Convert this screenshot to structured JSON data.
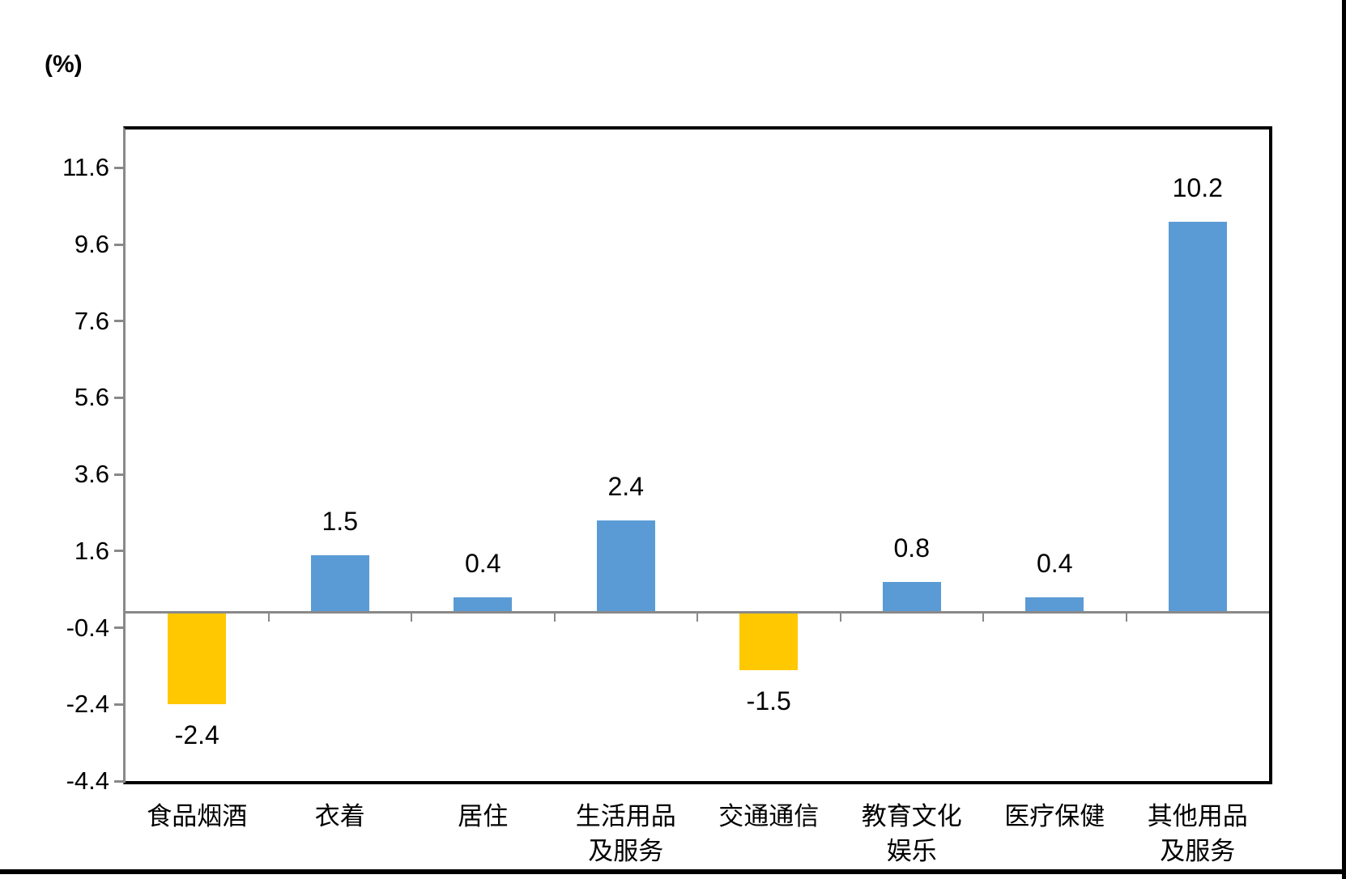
{
  "chart_data": {
    "type": "bar",
    "title": "",
    "ylabel": "(%)",
    "xlabel": "",
    "categories": [
      "食品烟酒",
      "衣着",
      "居住",
      "生活用品及服务",
      "交通通信",
      "教育文化娱乐",
      "医疗保健",
      "其他用品及服务"
    ],
    "category_lines": [
      [
        "食品烟酒"
      ],
      [
        "衣着"
      ],
      [
        "居住"
      ],
      [
        "生活用品",
        "及服务"
      ],
      [
        "交通通信"
      ],
      [
        "教育文化",
        "娱乐"
      ],
      [
        "医疗保健"
      ],
      [
        "其他用品",
        "及服务"
      ]
    ],
    "values": [
      -2.4,
      1.5,
      0.4,
      2.4,
      -1.5,
      0.8,
      0.4,
      10.2
    ],
    "value_labels": [
      "-2.4",
      "1.5",
      "0.4",
      "2.4",
      "-1.5",
      "0.8",
      "0.4",
      "10.2"
    ],
    "bar_colors": [
      "#FFC800",
      "#5B9BD5",
      "#5B9BD5",
      "#5B9BD5",
      "#FFC800",
      "#5B9BD5",
      "#5B9BD5",
      "#5B9BD5"
    ],
    "y_ticks": [
      11.6,
      9.6,
      7.6,
      5.6,
      3.6,
      1.6,
      -0.4,
      -2.4,
      -4.4
    ],
    "y_tick_labels": [
      "11.6",
      "9.6",
      "7.6",
      "5.6",
      "3.6",
      "1.6",
      "-0.4",
      "-2.4",
      "-4.4"
    ],
    "ylim": [
      -4.4,
      12.6
    ],
    "grid": "off",
    "legend": "none",
    "colors": {
      "bar_blue": "#5B9BD5",
      "bar_gold": "#FFC800",
      "axis_gray": "#898989",
      "frame_black": "#000000"
    }
  }
}
